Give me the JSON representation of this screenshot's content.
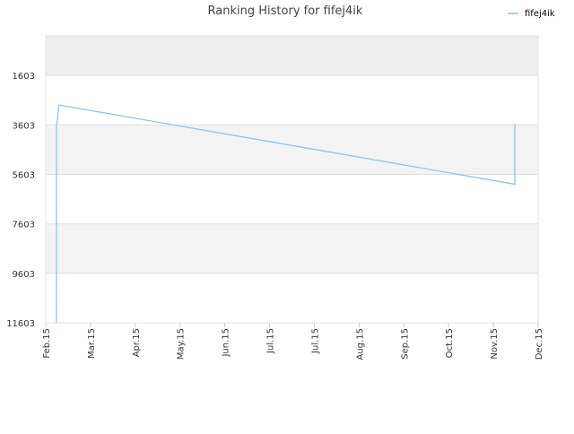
{
  "chart_data": {
    "type": "line",
    "title": "Ranking History for fifej4ik",
    "x": [
      0.24,
      0.24,
      0.26,
      0.28,
      0.3,
      10.48,
      10.48
    ],
    "series": [
      {
        "name": "fifej4ik",
        "color": "#8ec4ea",
        "values": [
          11603,
          3603,
          3400,
          3000,
          2800,
          6000,
          3550
        ]
      }
    ],
    "xlim": [
      0,
      11
    ],
    "xticks": [
      {
        "value": 0,
        "label": "Feb.15"
      },
      {
        "value": 1,
        "label": "Mar.15"
      },
      {
        "value": 2,
        "label": "Apr.15"
      },
      {
        "value": 3,
        "label": "May.15"
      },
      {
        "value": 4,
        "label": "Jun.15"
      },
      {
        "value": 5,
        "label": "Jul.15"
      },
      {
        "value": 6,
        "label": "Jul.15"
      },
      {
        "value": 7,
        "label": "Aug.15"
      },
      {
        "value": 8,
        "label": "Sep.15"
      },
      {
        "value": 9,
        "label": "Oct.15"
      },
      {
        "value": 10,
        "label": "Nov.15"
      },
      {
        "value": 11,
        "label": "Dec.15"
      }
    ],
    "ylim": [
      11603,
      3
    ],
    "yticks": [
      1603,
      3603,
      5603,
      7603,
      9603,
      11603
    ],
    "grid": true,
    "legend": "top-right"
  }
}
